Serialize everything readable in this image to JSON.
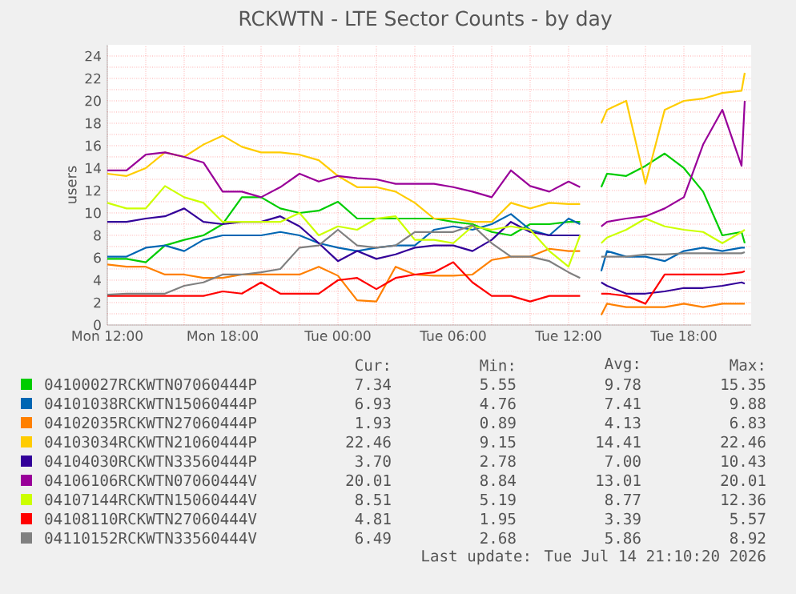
{
  "chart_data": {
    "type": "line",
    "title": "RCKWTN - LTE Sector Counts - by day",
    "ylabel": "users",
    "x": [
      "2026-07-13T12:00",
      "2026-07-13T13:00",
      "2026-07-13T14:00",
      "2026-07-13T15:00",
      "2026-07-13T16:00",
      "2026-07-13T17:00",
      "2026-07-13T18:00",
      "2026-07-13T19:00",
      "2026-07-13T20:00",
      "2026-07-13T21:00",
      "2026-07-13T22:00",
      "2026-07-13T23:00",
      "2026-07-14T00:00",
      "2026-07-14T01:00",
      "2026-07-14T02:00",
      "2026-07-14T03:00",
      "2026-07-14T04:00",
      "2026-07-14T05:00",
      "2026-07-14T06:00",
      "2026-07-14T07:00",
      "2026-07-14T08:00",
      "2026-07-14T09:00",
      "2026-07-14T10:00",
      "2026-07-14T11:00",
      "2026-07-14T12:00",
      "2026-07-14T12:36",
      "2026-07-14T13:06",
      "2026-07-14T13:42",
      "2026-07-14T14:00",
      "2026-07-14T15:00",
      "2026-07-14T16:00",
      "2026-07-14T17:00",
      "2026-07-14T18:00",
      "2026-07-14T19:00",
      "2026-07-14T20:00",
      "2026-07-14T21:00",
      "2026-07-14T21:10"
    ],
    "xlim": [
      "2026-07-13T12:00",
      "2026-07-14T21:30"
    ],
    "ylim": [
      0,
      25
    ],
    "xticks": [
      {
        "value": "2026-07-13T12:00",
        "label": "Mon 12:00"
      },
      {
        "value": "2026-07-13T14:00",
        "label": null
      },
      {
        "value": "2026-07-13T16:00",
        "label": null
      },
      {
        "value": "2026-07-13T18:00",
        "label": "Mon 18:00"
      },
      {
        "value": "2026-07-13T20:00",
        "label": null
      },
      {
        "value": "2026-07-13T22:00",
        "label": null
      },
      {
        "value": "2026-07-14T00:00",
        "label": "Tue 00:00"
      },
      {
        "value": "2026-07-14T02:00",
        "label": null
      },
      {
        "value": "2026-07-14T04:00",
        "label": null
      },
      {
        "value": "2026-07-14T06:00",
        "label": "Tue 06:00"
      },
      {
        "value": "2026-07-14T08:00",
        "label": null
      },
      {
        "value": "2026-07-14T10:00",
        "label": null
      },
      {
        "value": "2026-07-14T12:00",
        "label": "Tue 12:00"
      },
      {
        "value": "2026-07-14T14:00",
        "label": null
      },
      {
        "value": "2026-07-14T16:00",
        "label": null
      },
      {
        "value": "2026-07-14T18:00",
        "label": "Tue 18:00"
      },
      {
        "value": "2026-07-14T20:00",
        "label": null
      }
    ],
    "yticks": [
      0,
      {
        "value": 1,
        "label": null
      },
      2,
      {
        "value": 3,
        "label": null
      },
      4,
      {
        "value": 5,
        "label": null
      },
      6,
      {
        "value": 7,
        "label": null
      },
      8,
      {
        "value": 9,
        "label": null
      },
      10,
      {
        "value": 11,
        "label": null
      },
      12,
      {
        "value": 13,
        "label": null
      },
      14,
      {
        "value": 15,
        "label": null
      },
      16,
      {
        "value": 17,
        "label": null
      },
      18,
      {
        "value": 19,
        "label": null
      },
      20,
      {
        "value": 21,
        "label": null
      },
      22,
      {
        "value": 23,
        "label": null
      },
      24
    ],
    "grid": true,
    "legend": "bottom",
    "series": [
      {
        "name": "04100027RCKWTN07060444P",
        "color": "#00cc00",
        "values": [
          5.9,
          5.9,
          5.6,
          7.1,
          7.6,
          8.0,
          9.0,
          11.4,
          11.4,
          10.4,
          10.0,
          10.2,
          11.0,
          9.5,
          9.5,
          9.5,
          9.5,
          9.5,
          9.2,
          9.0,
          8.3,
          8.0,
          9.0,
          9.0,
          9.2,
          9.2,
          null,
          12.3,
          13.5,
          13.3,
          14.2,
          15.3,
          14.0,
          11.9,
          8.0,
          8.3,
          7.3
        ]
      },
      {
        "name": "04101038RCKWTN15060444P",
        "color": "#0066b3",
        "values": [
          6.1,
          6.1,
          6.9,
          7.1,
          6.6,
          7.6,
          8.0,
          8.0,
          8.0,
          8.3,
          8.0,
          7.3,
          6.9,
          6.6,
          6.9,
          7.1,
          7.1,
          8.5,
          8.8,
          8.5,
          9.0,
          9.9,
          8.5,
          8.0,
          9.5,
          9.0,
          null,
          4.8,
          6.6,
          6.1,
          6.1,
          5.7,
          6.6,
          6.9,
          6.6,
          6.9,
          6.9
        ]
      },
      {
        "name": "04102035RCKWTN27060444P",
        "color": "#ff8000",
        "values": [
          5.4,
          5.2,
          5.2,
          4.5,
          4.5,
          4.2,
          4.2,
          4.5,
          4.5,
          4.5,
          4.5,
          5.2,
          4.4,
          2.2,
          2.1,
          5.2,
          4.5,
          4.4,
          4.4,
          4.5,
          5.8,
          6.1,
          6.1,
          6.8,
          6.6,
          6.6,
          null,
          0.9,
          1.9,
          1.6,
          1.6,
          1.6,
          1.9,
          1.6,
          1.9,
          1.9,
          1.9
        ]
      },
      {
        "name": "04103034RCKWTN21060444P",
        "color": "#ffcc00",
        "values": [
          13.5,
          13.3,
          14.0,
          15.4,
          15.0,
          16.1,
          16.9,
          15.9,
          15.4,
          15.4,
          15.2,
          14.7,
          13.3,
          12.3,
          12.3,
          11.9,
          10.9,
          9.5,
          9.5,
          9.2,
          9.2,
          10.9,
          10.4,
          10.9,
          10.8,
          10.8,
          null,
          18.0,
          19.2,
          20.0,
          12.6,
          19.2,
          20.0,
          20.2,
          20.7,
          20.9,
          22.5
        ]
      },
      {
        "name": "04104030RCKWTN33560444P",
        "color": "#330099",
        "values": [
          9.2,
          9.2,
          9.5,
          9.7,
          10.4,
          9.2,
          9.0,
          9.2,
          9.2,
          9.7,
          8.8,
          7.3,
          5.7,
          6.6,
          5.9,
          6.3,
          6.9,
          7.1,
          7.1,
          6.6,
          7.6,
          9.2,
          8.3,
          8.0,
          8.0,
          8.0,
          null,
          3.8,
          3.5,
          2.8,
          2.8,
          3.0,
          3.3,
          3.3,
          3.5,
          3.8,
          3.7
        ]
      },
      {
        "name": "04106106RCKWTN07060444V",
        "color": "#990099",
        "values": [
          13.8,
          13.8,
          15.2,
          15.4,
          15.0,
          14.5,
          11.9,
          11.9,
          11.4,
          12.3,
          13.5,
          12.8,
          13.3,
          13.1,
          13.0,
          12.6,
          12.6,
          12.6,
          12.3,
          11.9,
          11.4,
          13.8,
          12.4,
          11.9,
          12.8,
          12.3,
          null,
          8.8,
          9.2,
          9.5,
          9.7,
          10.4,
          11.4,
          16.1,
          19.2,
          14.2,
          20.0
        ]
      },
      {
        "name": "04107144RCKWTN15060444V",
        "color": "#ccff00",
        "values": [
          10.9,
          10.4,
          10.4,
          12.4,
          11.4,
          10.9,
          9.2,
          9.2,
          9.2,
          9.2,
          10.0,
          8.0,
          8.8,
          8.5,
          9.5,
          9.7,
          7.6,
          7.6,
          7.3,
          8.8,
          8.5,
          8.8,
          8.5,
          6.6,
          5.2,
          8.0,
          null,
          7.3,
          7.8,
          8.5,
          9.5,
          8.8,
          8.5,
          8.3,
          7.3,
          8.3,
          8.5
        ]
      },
      {
        "name": "04108110RCKWTN27060444V",
        "color": "#ff0000",
        "values": [
          2.6,
          2.6,
          2.6,
          2.6,
          2.6,
          2.6,
          3.0,
          2.8,
          3.8,
          2.8,
          2.8,
          2.8,
          4.0,
          4.2,
          3.2,
          4.2,
          4.5,
          4.7,
          5.6,
          3.8,
          2.6,
          2.6,
          2.1,
          2.6,
          2.6,
          2.6,
          null,
          2.8,
          2.8,
          2.6,
          1.9,
          4.5,
          4.5,
          4.5,
          4.5,
          4.7,
          4.8
        ]
      },
      {
        "name": "04110152RCKWTN33560444V",
        "color": "#808080",
        "values": [
          2.7,
          2.8,
          2.8,
          2.8,
          3.5,
          3.8,
          4.5,
          4.5,
          4.7,
          5.0,
          6.9,
          7.1,
          8.5,
          7.1,
          6.9,
          7.1,
          8.3,
          8.3,
          8.3,
          8.9,
          7.3,
          6.1,
          6.1,
          5.7,
          4.7,
          4.2,
          null,
          6.1,
          6.1,
          6.1,
          6.3,
          6.3,
          6.4,
          6.4,
          6.4,
          6.4,
          6.5
        ]
      }
    ],
    "annotations": [
      "Cur:",
      "Min:",
      "Avg:",
      "Max:",
      "7.34",
      "5.55",
      "9.78",
      "15.35",
      "6.93",
      "4.76",
      "7.41",
      "9.88",
      "1.93",
      "0.89",
      "4.13",
      "6.83",
      "22.46",
      "9.15",
      "14.41",
      "22.46",
      "3.70",
      "2.78",
      "7.00",
      "10.43",
      "20.01",
      "8.84",
      "13.01",
      "20.01",
      "8.51",
      "5.19",
      "8.77",
      "12.36",
      "4.81",
      "1.95",
      "3.39",
      "5.57",
      "6.49",
      "2.68",
      "5.86",
      "8.92",
      "Last update: Tue Jul 14 21:10:20 2026"
    ]
  }
}
